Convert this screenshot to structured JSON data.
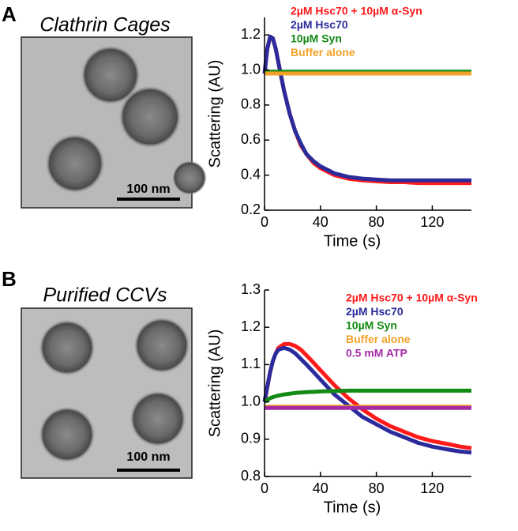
{
  "panels": [
    {
      "label": "A",
      "image_title": "Clathrin Cages",
      "scale_bar": "100 nm"
    },
    {
      "label": "B",
      "image_title": "Purified CCVs",
      "scale_bar": "100 nm"
    }
  ],
  "chart_data": [
    {
      "type": "line",
      "x_label": "Time (s)",
      "y_label": "Scattering (AU)",
      "x": [
        0,
        2,
        4,
        6,
        8,
        10,
        14,
        18,
        22,
        26,
        30,
        35,
        40,
        50,
        60,
        70,
        80,
        90,
        100,
        110,
        120,
        130,
        140,
        148
      ],
      "xlim": [
        0,
        148
      ],
      "xticks": [
        0,
        40,
        80,
        120
      ],
      "ylim": [
        0.2,
        1.3
      ],
      "yticks": [
        0.2,
        0.4,
        0.6,
        0.8,
        {
          "value": 1,
          "label": "1.0"
        },
        1.2
      ],
      "series": [
        {
          "name": "2µM Hsc70 + 10µM α-Syn",
          "color": "#ff1a1a",
          "values": [
            0.98,
            1.12,
            1.19,
            1.18,
            1.12,
            1.04,
            0.88,
            0.75,
            0.65,
            0.57,
            0.52,
            0.47,
            0.44,
            0.4,
            0.38,
            0.37,
            0.365,
            0.36,
            0.36,
            0.355,
            0.355,
            0.355,
            0.355,
            0.355
          ]
        },
        {
          "name": "2µM Hsc70",
          "color": "#2b2b9c",
          "values": [
            0.98,
            1.12,
            1.19,
            1.18,
            1.12,
            1.04,
            0.88,
            0.75,
            0.65,
            0.58,
            0.52,
            0.48,
            0.45,
            0.41,
            0.39,
            0.38,
            0.375,
            0.37,
            0.37,
            0.37,
            0.37,
            0.37,
            0.37,
            0.37
          ]
        },
        {
          "name": "10µM Syn",
          "color": "#138a13",
          "values": [
            0.99,
            0.99,
            0.99,
            0.99,
            0.99,
            0.99,
            0.99,
            0.99,
            0.99,
            0.99,
            0.99,
            0.99,
            0.99,
            0.99,
            0.99,
            0.99,
            0.99,
            0.99,
            0.99,
            0.99,
            0.99,
            0.99,
            0.99,
            0.99
          ]
        },
        {
          "name": "Buffer alone",
          "color": "#f2a22a",
          "values": [
            0.98,
            0.98,
            0.98,
            0.98,
            0.98,
            0.98,
            0.98,
            0.98,
            0.98,
            0.98,
            0.98,
            0.98,
            0.98,
            0.98,
            0.98,
            0.98,
            0.98,
            0.98,
            0.98,
            0.98,
            0.98,
            0.98,
            0.98,
            0.98
          ]
        }
      ]
    },
    {
      "type": "line",
      "x_label": "Time (s)",
      "y_label": "Scattering (AU)",
      "x": [
        0,
        2,
        4,
        6,
        8,
        10,
        14,
        18,
        22,
        26,
        30,
        35,
        40,
        50,
        60,
        70,
        80,
        90,
        100,
        110,
        120,
        130,
        140,
        148
      ],
      "xlim": [
        0,
        148
      ],
      "xticks": [
        0,
        40,
        80,
        120
      ],
      "ylim": [
        0.8,
        1.3
      ],
      "yticks": [
        0.8,
        0.9,
        {
          "value": 1,
          "label": "1.0"
        },
        1.1,
        1.2,
        1.3
      ],
      "series": [
        {
          "name": "2µM Hsc70 + 10µM α-Syn",
          "color": "#ff1a1a",
          "values": [
            1,
            1.04,
            1.08,
            1.11,
            1.13,
            1.145,
            1.155,
            1.155,
            1.15,
            1.14,
            1.125,
            1.105,
            1.085,
            1.045,
            1.01,
            0.98,
            0.955,
            0.935,
            0.92,
            0.905,
            0.895,
            0.888,
            0.88,
            0.876
          ]
        },
        {
          "name": "2µM Hsc70",
          "color": "#2b2b9c",
          "values": [
            1,
            1.04,
            1.08,
            1.11,
            1.13,
            1.14,
            1.145,
            1.14,
            1.13,
            1.115,
            1.1,
            1.08,
            1.06,
            1.02,
            0.99,
            0.96,
            0.94,
            0.92,
            0.905,
            0.89,
            0.88,
            0.873,
            0.867,
            0.864
          ]
        },
        {
          "name": "10µM Syn",
          "color": "#138a13",
          "values": [
            1,
            1.005,
            1.01,
            1.013,
            1.015,
            1.017,
            1.02,
            1.022,
            1.024,
            1.025,
            1.026,
            1.027,
            1.028,
            1.029,
            1.03,
            1.03,
            1.03,
            1.03,
            1.03,
            1.03,
            1.03,
            1.03,
            1.03,
            1.03
          ]
        },
        {
          "name": "Buffer alone",
          "color": "#f2a22a",
          "values": [
            0.987,
            0.987,
            0.987,
            0.987,
            0.987,
            0.987,
            0.987,
            0.987,
            0.987,
            0.987,
            0.987,
            0.987,
            0.987,
            0.987,
            0.987,
            0.987,
            0.987,
            0.987,
            0.987,
            0.987,
            0.987,
            0.987,
            0.987,
            0.987
          ]
        },
        {
          "name": "0.5 mM ATP",
          "color": "#a52aa5",
          "values": [
            0.984,
            0.984,
            0.984,
            0.984,
            0.984,
            0.984,
            0.984,
            0.984,
            0.984,
            0.984,
            0.984,
            0.984,
            0.984,
            0.984,
            0.984,
            0.984,
            0.984,
            0.984,
            0.984,
            0.984,
            0.984,
            0.984,
            0.984,
            0.984
          ]
        }
      ]
    }
  ]
}
